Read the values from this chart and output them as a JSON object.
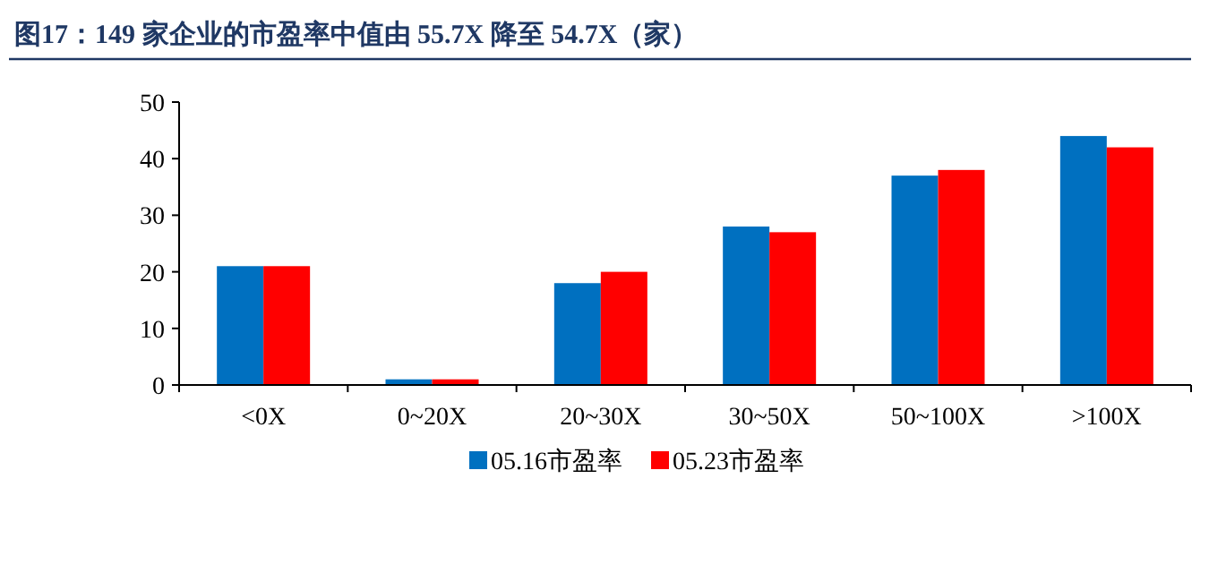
{
  "chart_data": {
    "type": "bar",
    "title": "图17：149 家企业的市盈率中值由 55.7X 降至 54.7X（家）",
    "categories": [
      "<0X",
      "0~20X",
      "20~30X",
      "30~50X",
      "50~100X",
      ">100X"
    ],
    "series": [
      {
        "name": "05.16市盈率",
        "color": "#0070c0",
        "values": [
          21,
          1,
          18,
          28,
          37,
          44
        ]
      },
      {
        "name": "05.23市盈率",
        "color": "#ff0000",
        "values": [
          21,
          1,
          20,
          27,
          38,
          42
        ]
      }
    ],
    "ylim": [
      0,
      50
    ],
    "yticks": [
      0,
      10,
      20,
      30,
      40,
      50
    ],
    "grid": false,
    "legend": "bottom"
  }
}
